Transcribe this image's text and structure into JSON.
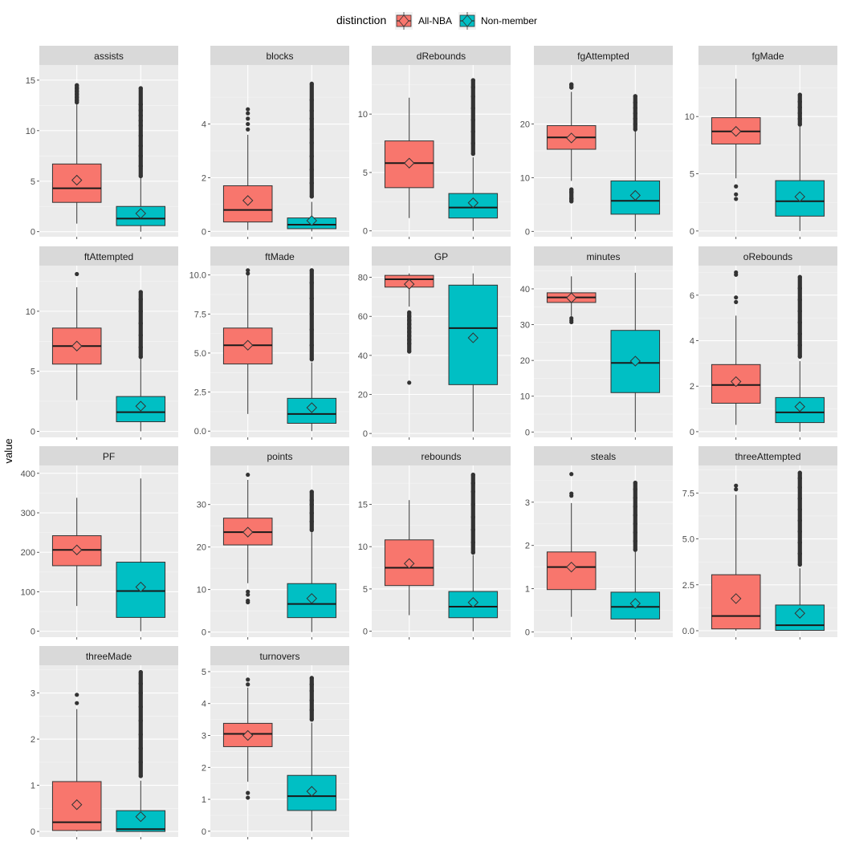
{
  "chart_data": {
    "type": "boxplot",
    "y_axis_label": "value",
    "legend": {
      "title": "distinction",
      "position": "top",
      "entries": [
        {
          "name": "All-NBA",
          "color": "#F8766D"
        },
        {
          "name": "Non-member",
          "color": "#00BFC4"
        }
      ]
    },
    "groups": [
      "All-NBA",
      "Non-member"
    ],
    "facet_layout": {
      "columns": 5,
      "rows": 4
    },
    "grid": true,
    "panels": [
      {
        "name": "assists",
        "ylim": [
          -0.5,
          16.5
        ],
        "ticks": [
          0,
          5,
          10,
          15
        ],
        "tick_labels": [
          "0",
          "5",
          "10",
          "15"
        ],
        "boxes": [
          {
            "group": "All-NBA",
            "q1": 2.9,
            "median": 4.3,
            "q3": 6.7,
            "whisker_low": 0.8,
            "whisker_high": 12.6,
            "mean": 5.1,
            "outliers": [
              12.8,
              13.0,
              13.3,
              13.6,
              13.9,
              14.2,
              14.5
            ]
          },
          {
            "group": "Non-member",
            "q1": 0.6,
            "median": 1.3,
            "q3": 2.5,
            "whisker_low": 0.0,
            "whisker_high": 5.3,
            "mean": 1.8,
            "outliers": [
              5.5,
              6.5,
              7.5,
              8.5,
              9.5,
              10.5,
              11.0,
              11.5,
              12.0,
              12.6,
              14.2
            ]
          }
        ]
      },
      {
        "name": "blocks",
        "ylim": [
          -0.2,
          6.2
        ],
        "ticks": [
          0,
          2,
          4
        ],
        "tick_labels": [
          "0",
          "2",
          "4"
        ],
        "boxes": [
          {
            "group": "All-NBA",
            "q1": 0.35,
            "median": 0.8,
            "q3": 1.7,
            "whisker_low": 0.05,
            "whisker_high": 3.6,
            "mean": 1.15,
            "outliers": [
              3.8,
              4.0,
              4.2,
              4.4,
              4.55
            ]
          },
          {
            "group": "Non-member",
            "q1": 0.1,
            "median": 0.25,
            "q3": 0.5,
            "whisker_low": 0.0,
            "whisker_high": 1.1,
            "mean": 0.4,
            "outliers": [
              1.3,
              1.8,
              2.3,
              2.8,
              3.3,
              3.8,
              4.2,
              4.5,
              4.9,
              5.5
            ]
          }
        ]
      },
      {
        "name": "dRebounds",
        "ylim": [
          -0.5,
          14.2
        ],
        "ticks": [
          0,
          5,
          10
        ],
        "tick_labels": [
          "0",
          "5",
          "10"
        ],
        "boxes": [
          {
            "group": "All-NBA",
            "q1": 3.7,
            "median": 5.8,
            "q3": 7.7,
            "whisker_low": 1.1,
            "whisker_high": 11.4,
            "mean": 5.8,
            "outliers": []
          },
          {
            "group": "Non-member",
            "q1": 1.1,
            "median": 2.0,
            "q3": 3.2,
            "whisker_low": 0.0,
            "whisker_high": 6.3,
            "mean": 2.4,
            "outliers": [
              6.6,
              7.5,
              8.5,
              9.5,
              10.5,
              11.5,
              12.3,
              12.9
            ]
          }
        ]
      },
      {
        "name": "fgAttempted",
        "ylim": [
          -1,
          31
        ],
        "ticks": [
          0,
          10,
          20
        ],
        "tick_labels": [
          "0",
          "10",
          "20"
        ],
        "boxes": [
          {
            "group": "All-NBA",
            "q1": 15.3,
            "median": 17.5,
            "q3": 19.7,
            "whisker_low": 9.4,
            "whisker_high": 26.0,
            "mean": 17.4,
            "outliers": [
              5.6,
              6.1,
              7.3,
              7.8,
              26.8,
              27.4
            ]
          },
          {
            "group": "Non-member",
            "q1": 3.2,
            "median": 5.7,
            "q3": 9.4,
            "whisker_low": 0.0,
            "whisker_high": 18.7,
            "mean": 6.7,
            "outliers": [
              19.0,
              20.0,
              21.0,
              22.0,
              23.0,
              24.0,
              25.2
            ]
          }
        ]
      },
      {
        "name": "fgMade",
        "ylim": [
          -0.5,
          14.5
        ],
        "ticks": [
          0,
          5,
          10
        ],
        "tick_labels": [
          "0",
          "5",
          "10"
        ],
        "boxes": [
          {
            "group": "All-NBA",
            "q1": 7.6,
            "median": 8.7,
            "q3": 9.9,
            "whisker_low": 4.6,
            "whisker_high": 13.3,
            "mean": 8.7,
            "outliers": [
              2.8,
              3.2,
              3.9
            ]
          },
          {
            "group": "Non-member",
            "q1": 1.3,
            "median": 2.6,
            "q3": 4.4,
            "whisker_low": 0.0,
            "whisker_high": 9.1,
            "mean": 3.0,
            "outliers": [
              9.3,
              9.8,
              10.3,
              10.8,
              11.3,
              11.9
            ]
          }
        ]
      },
      {
        "name": "ftAttempted",
        "ylim": [
          -0.5,
          13.8
        ],
        "ticks": [
          0,
          5,
          10
        ],
        "tick_labels": [
          "0",
          "5",
          "10"
        ],
        "boxes": [
          {
            "group": "All-NBA",
            "q1": 5.6,
            "median": 7.1,
            "q3": 8.6,
            "whisker_low": 2.6,
            "whisker_high": 12.0,
            "mean": 7.1,
            "outliers": [
              13.1
            ]
          },
          {
            "group": "Non-member",
            "q1": 0.8,
            "median": 1.6,
            "q3": 2.9,
            "whisker_low": 0.0,
            "whisker_high": 6.0,
            "mean": 2.1,
            "outliers": [
              6.2,
              7.0,
              8.0,
              9.0,
              10.0,
              11.0,
              11.6
            ]
          }
        ]
      },
      {
        "name": "ftMade",
        "ylim": [
          -0.4,
          10.6
        ],
        "ticks": [
          0,
          2.5,
          5,
          7.5,
          10
        ],
        "tick_labels": [
          "0.0",
          "2.5",
          "5.0",
          "7.5",
          "10.0"
        ],
        "boxes": [
          {
            "group": "All-NBA",
            "q1": 4.3,
            "median": 5.5,
            "q3": 6.6,
            "whisker_low": 1.1,
            "whisker_high": 10.0,
            "mean": 5.5,
            "outliers": [
              10.1,
              10.3
            ]
          },
          {
            "group": "Non-member",
            "q1": 0.5,
            "median": 1.1,
            "q3": 2.1,
            "whisker_low": 0.0,
            "whisker_high": 4.4,
            "mean": 1.5,
            "outliers": [
              4.6,
              5.5,
              6.5,
              7.5,
              8.5,
              9.5,
              10.3
            ]
          }
        ]
      },
      {
        "name": "GP",
        "ylim": [
          -2,
          86
        ],
        "ticks": [
          0,
          20,
          40,
          60,
          80
        ],
        "tick_labels": [
          "0",
          "20",
          "40",
          "60",
          "80"
        ],
        "boxes": [
          {
            "group": "All-NBA",
            "q1": 75,
            "median": 79,
            "q3": 81,
            "whisker_low": 65,
            "whisker_high": 82,
            "mean": 76.5,
            "outliers": [
              26,
              42,
              46,
              48,
              50,
              52,
              54,
              56,
              58,
              60,
              62
            ]
          },
          {
            "group": "Non-member",
            "q1": 25,
            "median": 54,
            "q3": 76,
            "whisker_low": 1,
            "whisker_high": 82,
            "mean": 49,
            "outliers": []
          }
        ]
      },
      {
        "name": "minutes",
        "ylim": [
          -1.5,
          46.5
        ],
        "ticks": [
          0,
          10,
          20,
          30,
          40
        ],
        "tick_labels": [
          "0",
          "10",
          "20",
          "30",
          "40"
        ],
        "boxes": [
          {
            "group": "All-NBA",
            "q1": 36.2,
            "median": 37.6,
            "q3": 38.9,
            "whisker_low": 32.4,
            "whisker_high": 43.5,
            "mean": 37.5,
            "outliers": [
              30.7,
              31.2,
              31.8
            ]
          },
          {
            "group": "Non-member",
            "q1": 11.0,
            "median": 19.3,
            "q3": 28.4,
            "whisker_low": 0.0,
            "whisker_high": 44.5,
            "mean": 19.8,
            "outliers": []
          }
        ]
      },
      {
        "name": "oRebounds",
        "ylim": [
          -0.25,
          7.3
        ],
        "ticks": [
          0,
          2,
          4,
          6
        ],
        "tick_labels": [
          "0",
          "2",
          "4",
          "6"
        ],
        "boxes": [
          {
            "group": "All-NBA",
            "q1": 1.25,
            "median": 2.05,
            "q3": 2.95,
            "whisker_low": 0.3,
            "whisker_high": 5.1,
            "mean": 2.2,
            "outliers": [
              5.7,
              5.9,
              6.9,
              7.0
            ]
          },
          {
            "group": "Non-member",
            "q1": 0.4,
            "median": 0.85,
            "q3": 1.5,
            "whisker_low": 0.0,
            "whisker_high": 3.1,
            "mean": 1.1,
            "outliers": [
              3.3,
              3.8,
              4.3,
              4.8,
              5.3,
              5.8,
              6.3,
              6.8
            ]
          }
        ]
      },
      {
        "name": "PF",
        "ylim": [
          -15,
          420
        ],
        "ticks": [
          0,
          100,
          200,
          300,
          400
        ],
        "tick_labels": [
          "0",
          "100",
          "200",
          "300",
          "400"
        ],
        "boxes": [
          {
            "group": "All-NBA",
            "q1": 166,
            "median": 206,
            "q3": 242,
            "whisker_low": 64,
            "whisker_high": 338,
            "mean": 206,
            "outliers": []
          },
          {
            "group": "Non-member",
            "q1": 35,
            "median": 102,
            "q3": 175,
            "whisker_low": 0,
            "whisker_high": 387,
            "mean": 112,
            "outliers": []
          }
        ]
      },
      {
        "name": "points",
        "ylim": [
          -1.2,
          39.2
        ],
        "ticks": [
          0,
          10,
          20,
          30
        ],
        "tick_labels": [
          "0",
          "10",
          "20",
          "30"
        ],
        "boxes": [
          {
            "group": "All-NBA",
            "q1": 20.5,
            "median": 23.5,
            "q3": 26.8,
            "whisker_low": 11.5,
            "whisker_high": 35.8,
            "mean": 23.5,
            "outliers": [
              7.0,
              7.4,
              8.8,
              9.5,
              37.0
            ]
          },
          {
            "group": "Non-member",
            "q1": 3.4,
            "median": 6.6,
            "q3": 11.4,
            "whisker_low": 0.0,
            "whisker_high": 23.5,
            "mean": 7.9,
            "outliers": [
              24.0,
              26.0,
              28.0,
              30.0,
              31.0,
              33.0
            ]
          }
        ]
      },
      {
        "name": "rebounds",
        "ylim": [
          -0.7,
          19.6
        ],
        "ticks": [
          0,
          5,
          10,
          15
        ],
        "tick_labels": [
          "0",
          "5",
          "10",
          "15"
        ],
        "boxes": [
          {
            "group": "All-NBA",
            "q1": 5.4,
            "median": 7.5,
            "q3": 10.8,
            "whisker_low": 1.9,
            "whisker_high": 15.5,
            "mean": 8.0,
            "outliers": []
          },
          {
            "group": "Non-member",
            "q1": 1.6,
            "median": 2.9,
            "q3": 4.7,
            "whisker_low": 0.0,
            "whisker_high": 9.0,
            "mean": 3.4,
            "outliers": [
              9.3,
              10.5,
              12.0,
              13.5,
              15.0,
              16.5,
              17.5,
              18.5
            ]
          }
        ]
      },
      {
        "name": "steals",
        "ylim": [
          -0.12,
          3.85
        ],
        "ticks": [
          0,
          1,
          2,
          3
        ],
        "tick_labels": [
          "0",
          "1",
          "2",
          "3"
        ],
        "boxes": [
          {
            "group": "All-NBA",
            "q1": 0.98,
            "median": 1.5,
            "q3": 1.85,
            "whisker_low": 0.35,
            "whisker_high": 2.98,
            "mean": 1.5,
            "outliers": [
              3.15,
              3.2,
              3.65
            ]
          },
          {
            "group": "Non-member",
            "q1": 0.3,
            "median": 0.58,
            "q3": 0.92,
            "whisker_low": 0.0,
            "whisker_high": 1.85,
            "mean": 0.66,
            "outliers": [
              1.9,
              2.1,
              2.3,
              2.5,
              2.7,
              2.9,
              3.1,
              3.3,
              3.45
            ]
          }
        ]
      },
      {
        "name": "threeAttempted",
        "ylim": [
          -0.35,
          9.0
        ],
        "ticks": [
          0,
          2.5,
          5,
          7.5
        ],
        "tick_labels": [
          "0.0",
          "2.5",
          "5.0",
          "7.5"
        ],
        "boxes": [
          {
            "group": "All-NBA",
            "q1": 0.1,
            "median": 0.8,
            "q3": 3.05,
            "whisker_low": 0.0,
            "whisker_high": 7.4,
            "mean": 1.75,
            "outliers": [
              7.7,
              7.9
            ]
          },
          {
            "group": "Non-member",
            "q1": 0.02,
            "median": 0.3,
            "q3": 1.4,
            "whisker_low": 0.0,
            "whisker_high": 3.4,
            "mean": 0.95,
            "outliers": [
              3.6,
              4.2,
              4.8,
              5.4,
              6.0,
              6.6,
              7.2,
              7.8,
              8.3,
              8.6
            ]
          }
        ]
      },
      {
        "name": "threeMade",
        "ylim": [
          -0.12,
          3.6
        ],
        "ticks": [
          0,
          1,
          2,
          3
        ],
        "tick_labels": [
          "0",
          "1",
          "2",
          "3"
        ],
        "boxes": [
          {
            "group": "All-NBA",
            "q1": 0.02,
            "median": 0.2,
            "q3": 1.08,
            "whisker_low": 0.0,
            "whisker_high": 2.65,
            "mean": 0.58,
            "outliers": [
              2.78,
              2.96
            ]
          },
          {
            "group": "Non-member",
            "q1": 0.0,
            "median": 0.05,
            "q3": 0.45,
            "whisker_low": 0.0,
            "whisker_high": 1.1,
            "mean": 0.32,
            "outliers": [
              1.2,
              1.5,
              1.8,
              2.1,
              2.4,
              2.7,
              3.0,
              3.2,
              3.45
            ]
          }
        ]
      },
      {
        "name": "turnovers",
        "ylim": [
          -0.18,
          5.2
        ],
        "ticks": [
          0,
          1,
          2,
          3,
          4,
          5
        ],
        "tick_labels": [
          "0",
          "1",
          "2",
          "3",
          "4",
          "5"
        ],
        "boxes": [
          {
            "group": "All-NBA",
            "q1": 2.65,
            "median": 3.05,
            "q3": 3.38,
            "whisker_low": 1.55,
            "whisker_high": 4.5,
            "mean": 3.0,
            "outliers": [
              1.05,
              1.2,
              4.6,
              4.75
            ]
          },
          {
            "group": "Non-member",
            "q1": 0.65,
            "median": 1.1,
            "q3": 1.75,
            "whisker_low": 0.0,
            "whisker_high": 3.4,
            "mean": 1.25,
            "outliers": [
              3.5,
              3.8,
              4.1,
              4.4,
              4.6,
              4.8
            ]
          }
        ]
      }
    ]
  }
}
